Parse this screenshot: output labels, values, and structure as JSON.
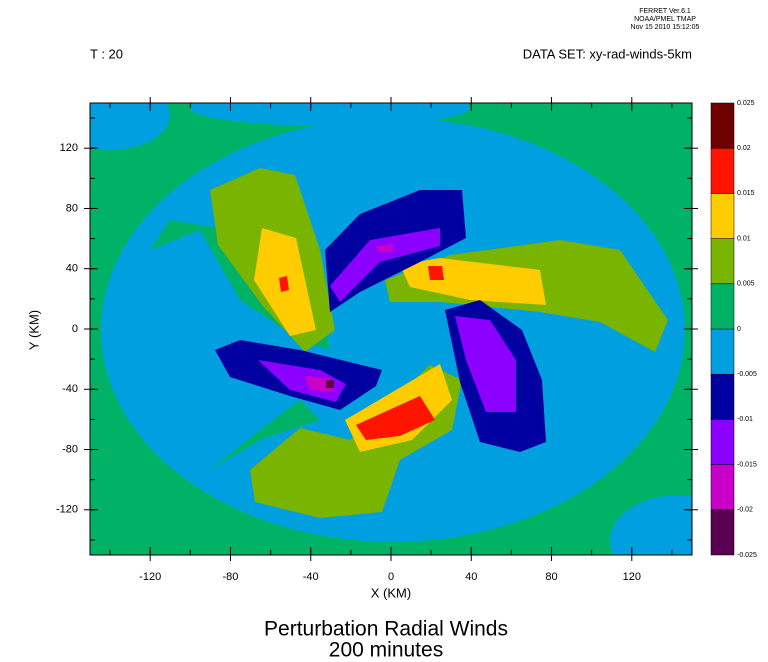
{
  "chart_data": {
    "type": "contour",
    "header": [
      "FERRET  Ver.6.1",
      "NOAA/PMEL TMAP",
      "Nov 15 2010 15:12:05"
    ],
    "time_label": "T : 20",
    "dataset_label": "DATA SET: xy-rad-winds-5km",
    "title": "Perturbation Radial Winds",
    "subtitle": "200 minutes",
    "x_label": "X (KM)",
    "y_label": "Y (KM)",
    "xlim": [
      -150,
      150
    ],
    "ylim": [
      -150,
      150
    ],
    "xticks": [
      -120,
      -80,
      -40,
      0,
      40,
      80,
      120
    ],
    "yticks": [
      -120,
      -80,
      -40,
      0,
      40,
      80,
      120
    ],
    "levels": [
      -0.025,
      -0.02,
      -0.015,
      -0.01,
      -0.005,
      0,
      0.005,
      0.01,
      0.015,
      0.02,
      0.025
    ],
    "colors": [
      "#5a0050",
      "#c800c8",
      "#8c00ff",
      "#0000a0",
      "#00a0e0",
      "#00b266",
      "#78b400",
      "#ffcc00",
      "#ff1400",
      "#6e0000"
    ]
  }
}
